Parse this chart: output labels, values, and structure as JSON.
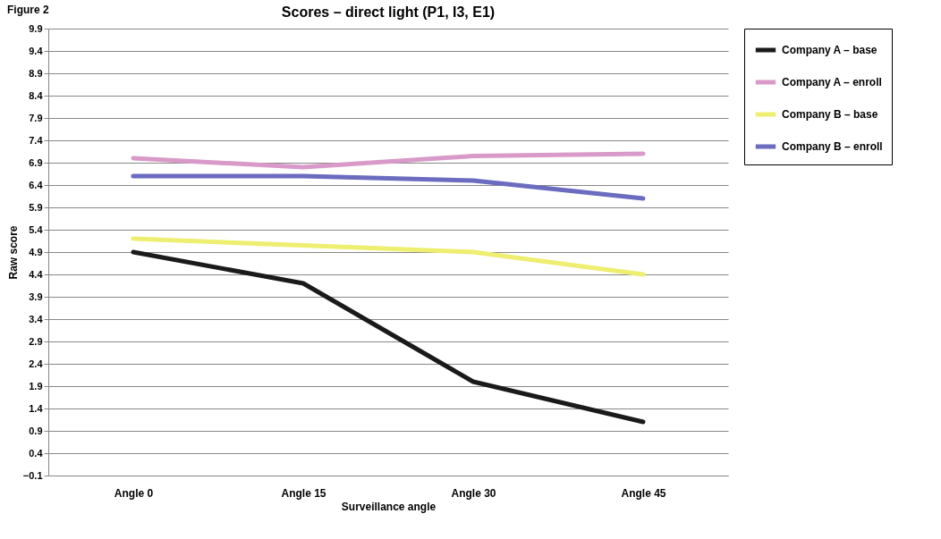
{
  "chart_data": {
    "type": "line",
    "title": "Scores – direct light (P1, I3, E1)",
    "xlabel": "Surveillance angle",
    "ylabel": "Raw score",
    "annotations": [
      "Figure 2"
    ],
    "categories": [
      "Angle 0",
      "Angle 15",
      "Angle 30",
      "Angle 45"
    ],
    "series": [
      {
        "name": "Company A – base",
        "color": "#1a1a1a",
        "values": [
          4.9,
          4.2,
          2.0,
          1.1
        ]
      },
      {
        "name": "Company A – enroll",
        "color": "#d99ac9",
        "values": [
          7.0,
          6.8,
          7.05,
          7.1
        ]
      },
      {
        "name": "Company B – base",
        "color": "#eeee70",
        "values": [
          5.2,
          5.05,
          4.9,
          4.4
        ]
      },
      {
        "name": "Company B – enroll",
        "color": "#6b6bc0",
        "values": [
          6.6,
          6.6,
          6.5,
          6.1
        ]
      }
    ],
    "ylim": [
      -0.1,
      9.9
    ],
    "yticks": [
      -0.1,
      0.4,
      0.9,
      1.4,
      1.9,
      2.4,
      2.9,
      3.4,
      3.9,
      4.4,
      4.9,
      5.4,
      5.9,
      6.4,
      6.9,
      7.4,
      7.9,
      8.4,
      8.9,
      9.4,
      9.9
    ],
    "grid": "y",
    "legend": "right",
    "line_style": "solid"
  }
}
